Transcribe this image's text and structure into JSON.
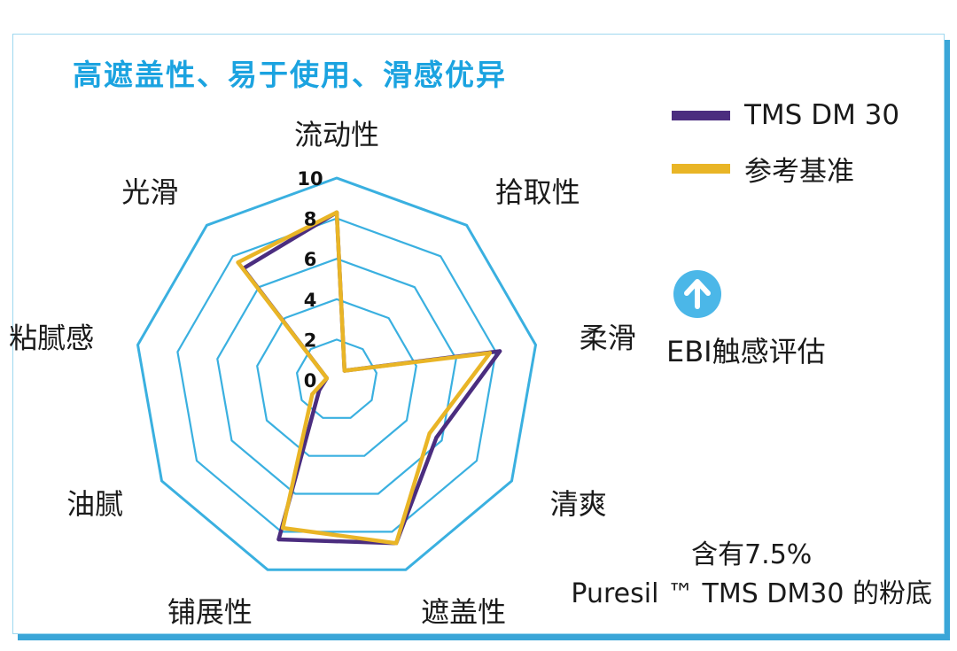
{
  "headline": "高遮盖性、易于使用、滑感优异",
  "colors": {
    "headline": "#1ba3e0",
    "grid": "#3ab0e0",
    "series_primary": "#4b2d7f",
    "series_reference": "#e9b526",
    "badge": "#4bb7e8",
    "card_shadow": "#3aa6d8"
  },
  "legend": [
    {
      "label": "TMS DM 30",
      "color": "#4b2d7f"
    },
    {
      "label": "参考基准",
      "color": "#e9b526"
    }
  ],
  "evaluation": {
    "icon": "arrow-up-icon",
    "label": "EBI触感评估"
  },
  "note": {
    "line1": "含有7.5%",
    "line2": "Puresil ™ TMS DM30 的粉底"
  },
  "chart_data": {
    "type": "radar",
    "axes": [
      "流动性",
      "拾取性",
      "柔滑",
      "清爽",
      "遮盖性",
      "铺展性",
      "油腻",
      "粘腻感",
      "光滑"
    ],
    "tick_labels": [
      "0",
      "2",
      "4",
      "6",
      "8",
      "10"
    ],
    "rlim": [
      0,
      10
    ],
    "series": [
      {
        "name": "TMS DM 30",
        "color": "#4b2d7f",
        "values": [
          8.3,
          0.6,
          8.2,
          5.7,
          8.6,
          8.4,
          1.0,
          0.5,
          7.2
        ]
      },
      {
        "name": "参考基准",
        "color": "#e9b526",
        "values": [
          8.3,
          0.6,
          7.7,
          5.3,
          8.6,
          7.8,
          1.4,
          0.5,
          7.6
        ]
      }
    ],
    "legend_position": "top-right"
  }
}
